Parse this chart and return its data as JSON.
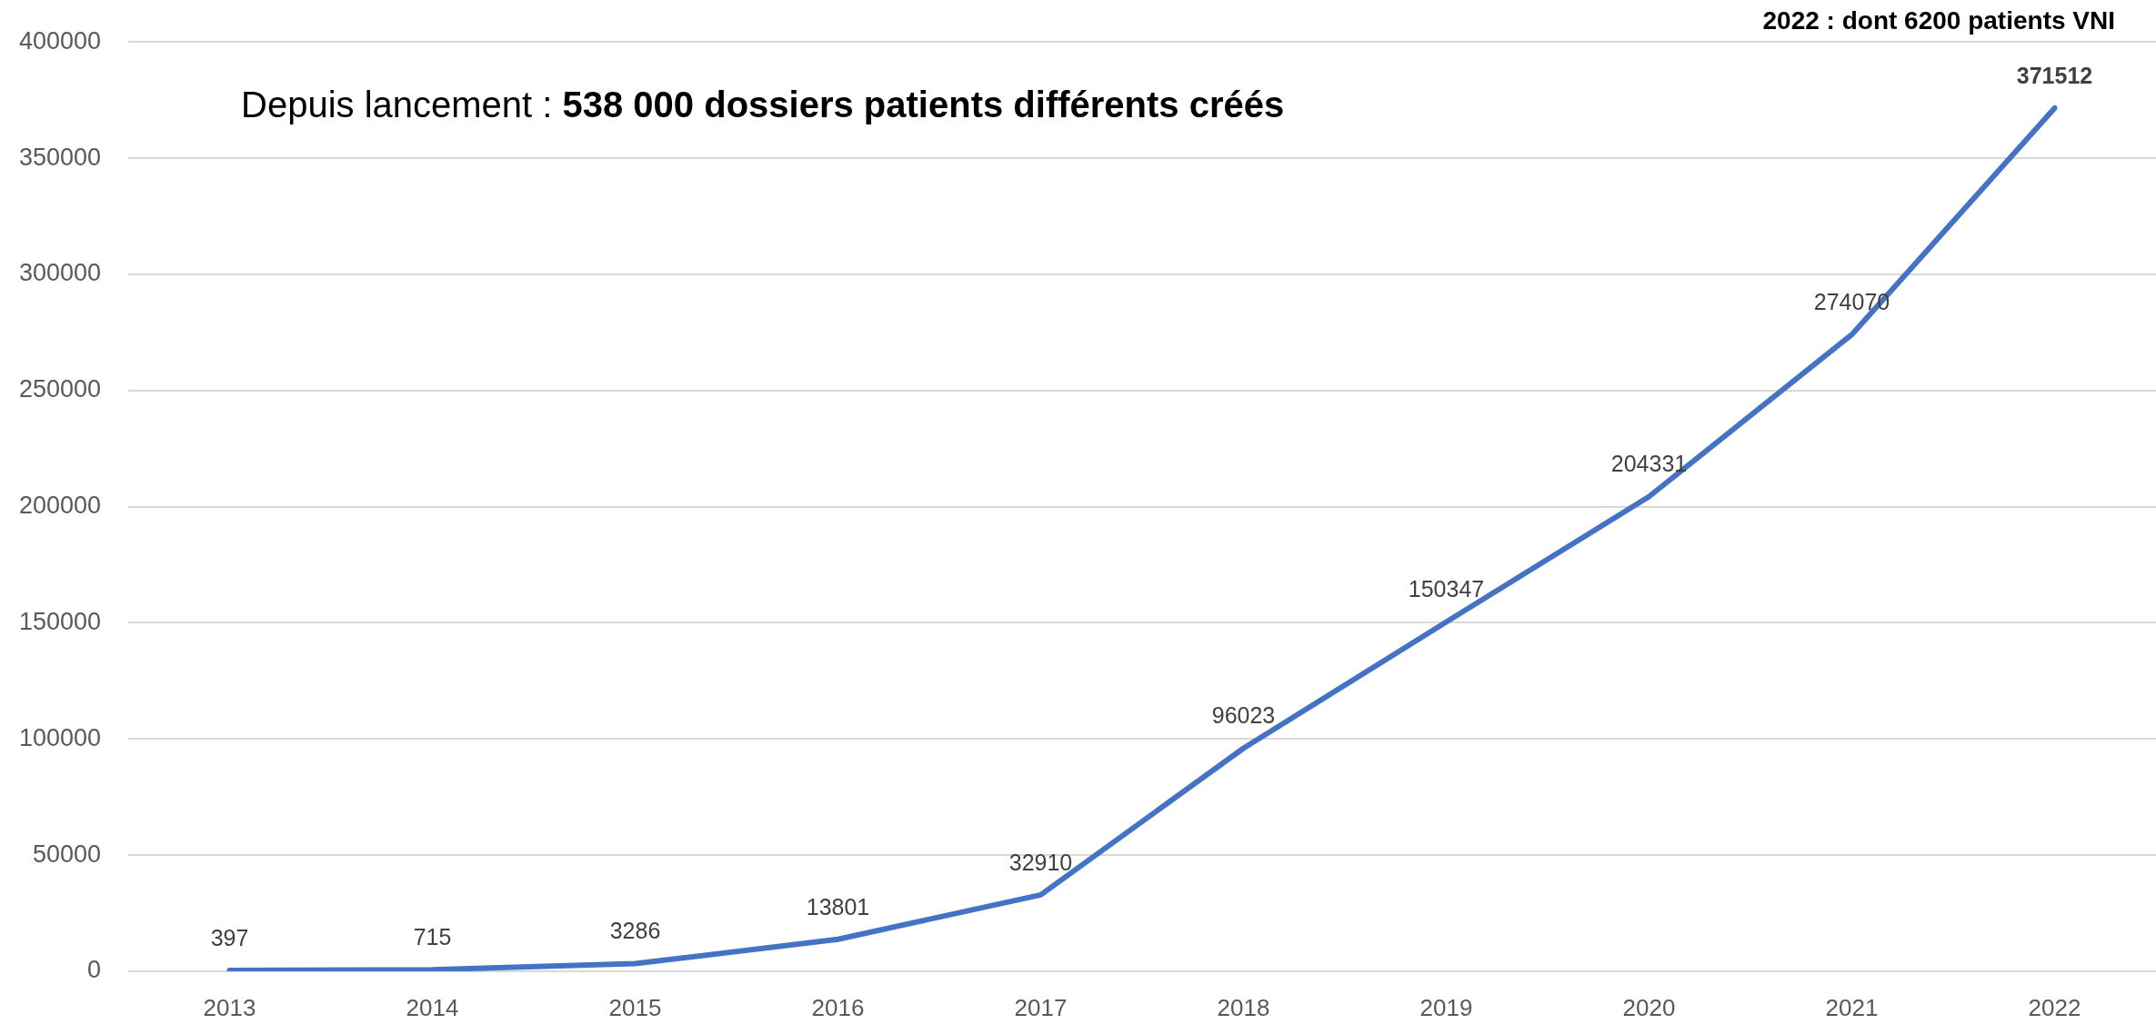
{
  "chart_data": {
    "type": "line",
    "categories": [
      "2013",
      "2014",
      "2015",
      "2016",
      "2017",
      "2018",
      "2019",
      "2020",
      "2021",
      "2022"
    ],
    "values": [
      397,
      715,
      3286,
      13801,
      32910,
      96023,
      150347,
      204331,
      274070,
      371512
    ],
    "color": "#4472c4",
    "ylim": [
      0,
      400000
    ],
    "yticks": [
      0,
      50000,
      100000,
      150000,
      200000,
      250000,
      300000,
      350000,
      400000
    ],
    "grid": "y",
    "data_labels": true,
    "marker": "none",
    "annotations": [
      "2022 : dont 6200 patients VNI",
      "Depuis lancement :",
      "538 000 dossiers patients différents créés"
    ]
  }
}
